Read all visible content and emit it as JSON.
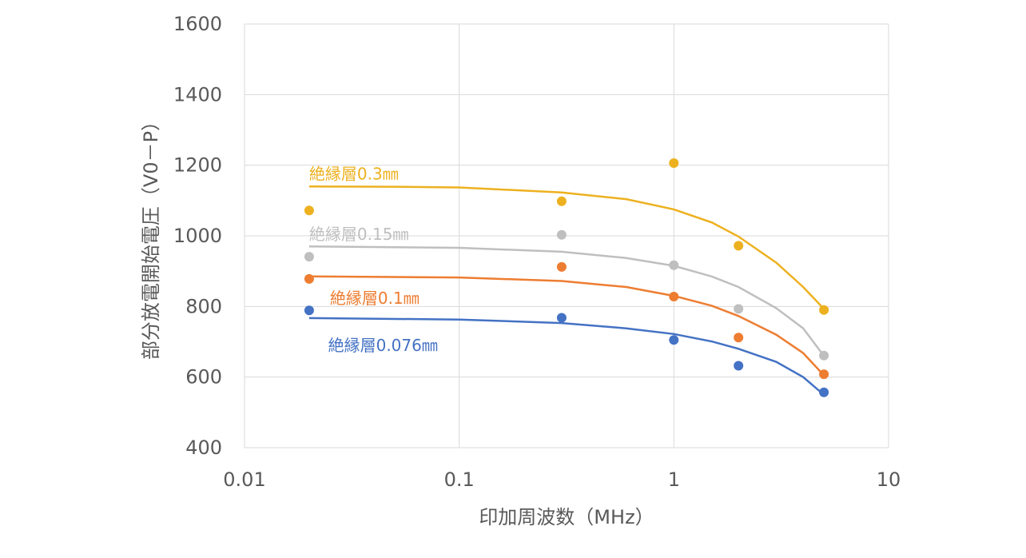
{
  "chart_data": {
    "type": "scatter",
    "xlabel": "印加周波数（MHz）",
    "ylabel": "部分放電開始電圧（V0－P）",
    "xscale": "log",
    "xlim": [
      0.01,
      10
    ],
    "ylim": [
      400,
      1600
    ],
    "x_ticks": [
      "0.01",
      "0.1",
      "1",
      "10"
    ],
    "y_ticks": [
      "400",
      "600",
      "800",
      "1000",
      "1200",
      "1400",
      "1600"
    ],
    "grid": true,
    "legend": "none",
    "series": [
      {
        "name": "絶縁層0.3㎜",
        "color": "#EDB120",
        "points": [
          [
            0.02,
            1072
          ],
          [
            0.3,
            1098
          ],
          [
            1,
            1206
          ],
          [
            2,
            972
          ],
          [
            5,
            790
          ]
        ],
        "trend": [
          [
            0.02,
            1140
          ],
          [
            0.05,
            1139
          ],
          [
            0.1,
            1137
          ],
          [
            0.3,
            1123
          ],
          [
            0.6,
            1104
          ],
          [
            1,
            1075
          ],
          [
            1.5,
            1038
          ],
          [
            2,
            998
          ],
          [
            3,
            924
          ],
          [
            4,
            855
          ],
          [
            5,
            793
          ]
        ]
      },
      {
        "name": "絶縁層0.15㎜",
        "color": "#BFBFBF",
        "points": [
          [
            0.02,
            941
          ],
          [
            0.3,
            1003
          ],
          [
            1,
            917
          ],
          [
            2,
            793
          ],
          [
            5,
            661
          ]
        ],
        "trend": [
          [
            0.02,
            970
          ],
          [
            0.1,
            966
          ],
          [
            0.3,
            955
          ],
          [
            0.6,
            937
          ],
          [
            1,
            915
          ],
          [
            1.5,
            885
          ],
          [
            2,
            855
          ],
          [
            3,
            795
          ],
          [
            4,
            738
          ],
          [
            5,
            660
          ]
        ]
      },
      {
        "name": "絶縁層0.1㎜",
        "color": "#ED7D31",
        "points": [
          [
            0.02,
            878
          ],
          [
            0.3,
            912
          ],
          [
            1,
            828
          ],
          [
            2,
            712
          ],
          [
            5,
            608
          ]
        ],
        "trend": [
          [
            0.02,
            885
          ],
          [
            0.1,
            882
          ],
          [
            0.3,
            872
          ],
          [
            0.6,
            855
          ],
          [
            1,
            830
          ],
          [
            1.5,
            802
          ],
          [
            2,
            773
          ],
          [
            3,
            720
          ],
          [
            4,
            668
          ],
          [
            5,
            605
          ]
        ]
      },
      {
        "name": "絶縁層0.076㎜",
        "color": "#4472C4",
        "points": [
          [
            0.02,
            789
          ],
          [
            0.3,
            768
          ],
          [
            1,
            705
          ],
          [
            2,
            632
          ],
          [
            5,
            557
          ]
        ],
        "trend": [
          [
            0.02,
            767
          ],
          [
            0.1,
            763
          ],
          [
            0.3,
            753
          ],
          [
            0.6,
            738
          ],
          [
            1,
            722
          ],
          [
            1.5,
            701
          ],
          [
            2,
            680
          ],
          [
            3,
            643
          ],
          [
            4,
            600
          ],
          [
            5,
            550
          ]
        ]
      }
    ],
    "labels": [
      {
        "series": 0,
        "text": "絶縁層0.3㎜",
        "anchor_x": 0.02,
        "anchor_y": 1175
      },
      {
        "series": 1,
        "text": "絶縁層0.15㎜",
        "anchor_x": 0.02,
        "anchor_y": 1005
      },
      {
        "series": 2,
        "text": "絶縁層0.1㎜",
        "anchor_x": 0.025,
        "anchor_y": 823
      },
      {
        "series": 3,
        "text": "絶縁層0.076㎜",
        "anchor_x": 0.0245,
        "anchor_y": 690
      }
    ]
  }
}
